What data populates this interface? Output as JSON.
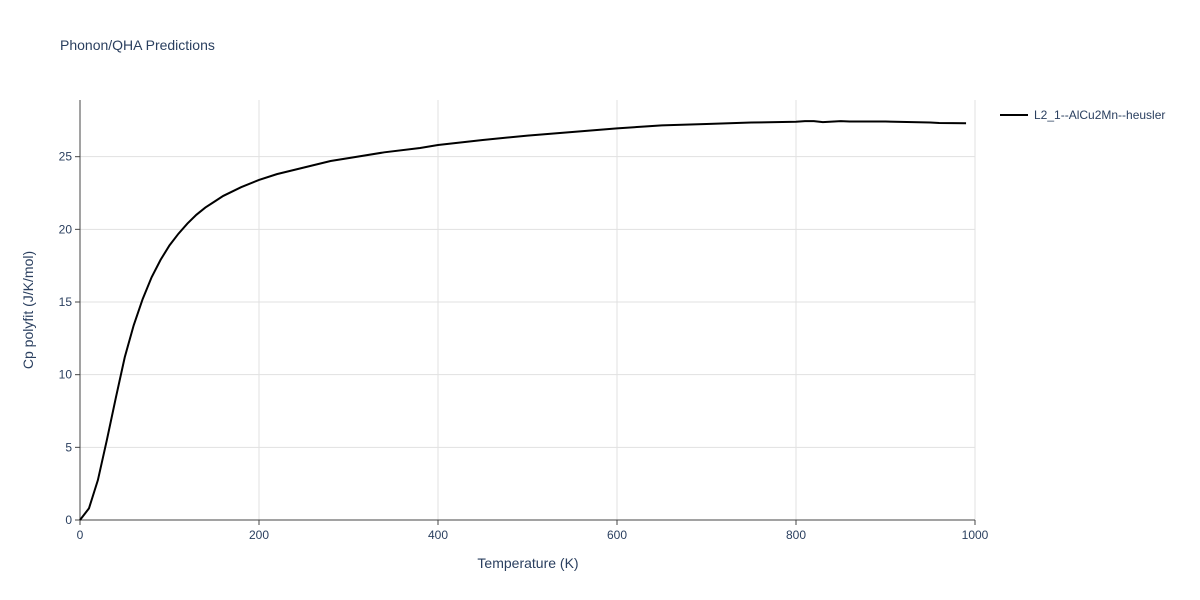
{
  "chart_data": {
    "type": "line",
    "title": "Phonon/QHA Predictions",
    "x_label": "Temperature (K)",
    "y_label": "Cp polyfit (J/K/mol)",
    "x": [
      0,
      10,
      20,
      30,
      40,
      50,
      60,
      70,
      80,
      90,
      100,
      110,
      120,
      130,
      140,
      150,
      160,
      170,
      180,
      200,
      220,
      240,
      260,
      280,
      300,
      340,
      380,
      400,
      450,
      500,
      550,
      600,
      650,
      700,
      750,
      800,
      810,
      820,
      830,
      850,
      860,
      900,
      950,
      960,
      990
    ],
    "series": [
      {
        "name": "L2_1--AlCu2Mn--heusler",
        "color": "#000000",
        "values": [
          0,
          0.8,
          2.75,
          5.5,
          8.4,
          11.2,
          13.4,
          15.2,
          16.7,
          17.9,
          18.9,
          19.7,
          20.4,
          21.0,
          21.5,
          21.9,
          22.3,
          22.6,
          22.9,
          23.4,
          23.8,
          24.1,
          24.4,
          24.7,
          24.9,
          25.3,
          25.6,
          25.8,
          26.15,
          26.45,
          26.7,
          26.95,
          27.15,
          27.25,
          27.35,
          27.4,
          27.45,
          27.45,
          27.38,
          27.45,
          27.42,
          27.42,
          27.35,
          27.32,
          27.3
        ]
      }
    ],
    "xlim": [
      0,
      1000
    ],
    "xticks": [
      0,
      200,
      400,
      600,
      800,
      1000
    ],
    "ylim": [
      0,
      28.9
    ],
    "yticks": [
      0,
      5,
      10,
      15,
      20,
      25
    ],
    "grid": true,
    "legend": "right"
  }
}
